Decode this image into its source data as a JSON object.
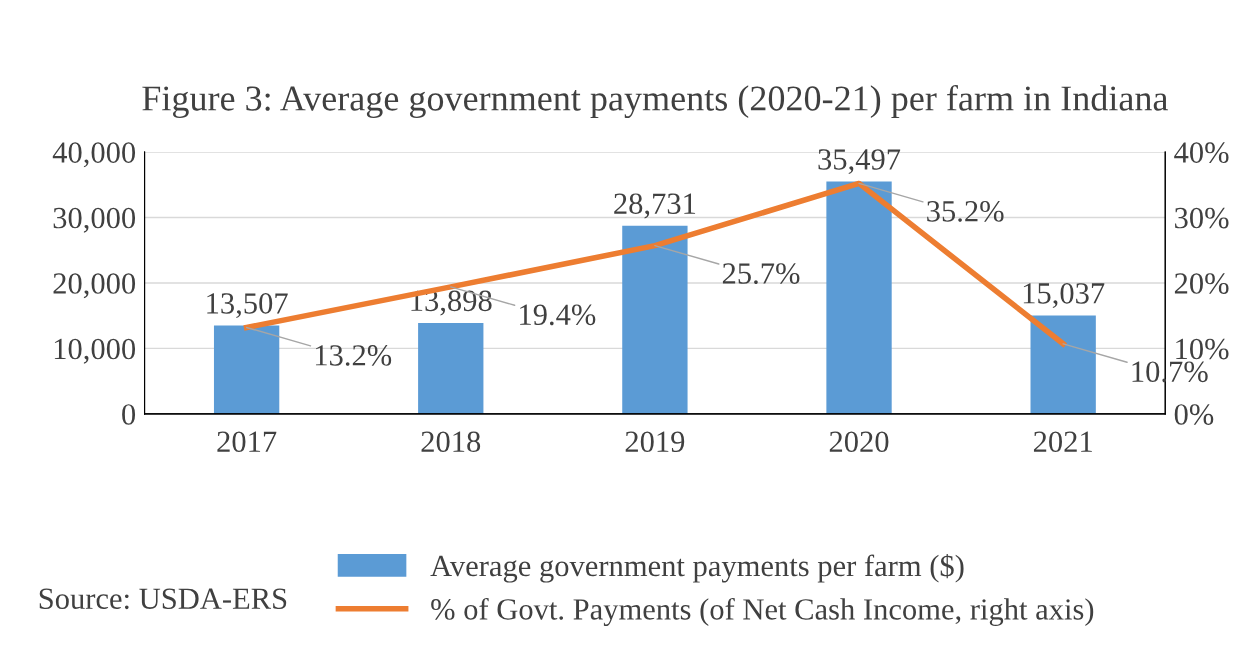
{
  "chart_data": {
    "type": "bar",
    "title": "Figure 3: Average government payments (2020-21) per farm in Indiana",
    "categories": [
      "2017",
      "2018",
      "2019",
      "2020",
      "2021"
    ],
    "series": [
      {
        "name": "Average government payments per farm ($)",
        "color": "#5b9bd5",
        "values": [
          13507,
          13898,
          28731,
          35497,
          15037
        ],
        "value_labels": [
          "13,507",
          "13,898",
          "28,731",
          "35,497",
          "15,037"
        ]
      },
      {
        "name": "% of Govt. Payments (of Net Cash Income, right axis)",
        "type": "line",
        "axis": "y2",
        "color": "#ed7d31",
        "values": [
          13.2,
          19.4,
          25.7,
          35.2,
          10.7
        ],
        "value_labels": [
          "13.2%",
          "19.4%",
          "25.7%",
          "35.2%",
          "10.7%"
        ]
      }
    ],
    "ylim": [
      0,
      40000
    ],
    "yticks": [
      {
        "value": 0,
        "label": "0"
      },
      {
        "value": 10000,
        "label": "10,000"
      },
      {
        "value": 20000,
        "label": "20,000"
      },
      {
        "value": 30000,
        "label": "30,000"
      },
      {
        "value": 40000,
        "label": "40,000"
      }
    ],
    "y2lim": [
      0,
      40
    ],
    "y2ticks": [
      {
        "value": 0,
        "label": "0%"
      },
      {
        "value": 10,
        "label": "10%"
      },
      {
        "value": 20,
        "label": "20%"
      },
      {
        "value": 30,
        "label": "30%"
      },
      {
        "value": 40,
        "label": "40%"
      }
    ],
    "grid": "y",
    "legend": "bottom",
    "marker": "none",
    "line_style": "solid",
    "annotations": [
      "Source: USDA-ERS"
    ]
  }
}
